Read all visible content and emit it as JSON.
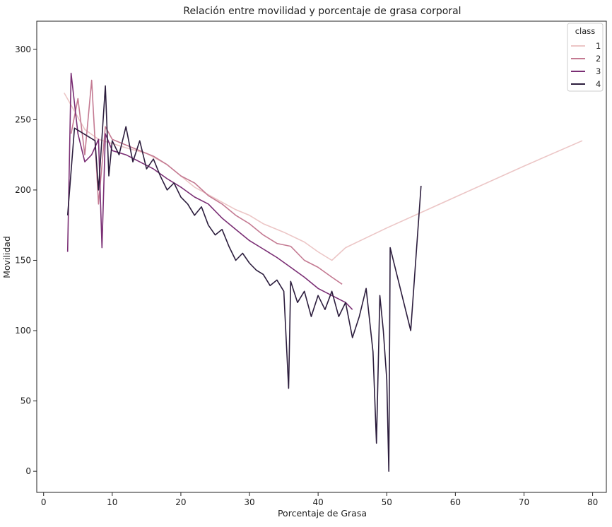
{
  "chart_data": {
    "type": "line",
    "title": "Relación entre movilidad y porcentaje de grasa corporal",
    "xlabel": "Porcentaje de Grasa",
    "ylabel": "Movilidad",
    "xlim": [
      -1,
      82
    ],
    "ylim": [
      -15,
      320
    ],
    "xticks": [
      "0",
      "10",
      "20",
      "30",
      "40",
      "50",
      "60",
      "70",
      "80"
    ],
    "yticks": [
      "0",
      "50",
      "100",
      "150",
      "200",
      "250",
      "300"
    ],
    "grid": false,
    "legend": {
      "title": "class",
      "placement": "top-right"
    },
    "series": [
      {
        "name": "1",
        "color": "#ecc6c6",
        "x": [
          3,
          6,
          8,
          10,
          12,
          15,
          18,
          20,
          22,
          25,
          28,
          30,
          32,
          35,
          38,
          40,
          42,
          44,
          50,
          60,
          70,
          78.5
        ],
        "y": [
          269,
          243,
          236,
          233,
          230,
          226,
          218,
          210,
          202,
          194,
          186,
          182,
          176,
          170,
          163,
          156,
          150,
          159,
          173,
          195,
          217,
          235
        ]
      },
      {
        "name": "2",
        "color": "#c47a92",
        "x": [
          4,
          5,
          6,
          7,
          8,
          9,
          10,
          12,
          14,
          16,
          18,
          20,
          22,
          24,
          26,
          28,
          30,
          32,
          34,
          36,
          38,
          40,
          42,
          43.5
        ],
        "y": [
          240,
          265,
          225,
          278,
          190,
          245,
          236,
          232,
          228,
          224,
          218,
          210,
          205,
          196,
          190,
          182,
          176,
          168,
          162,
          160,
          150,
          145,
          138,
          133
        ]
      },
      {
        "name": "3",
        "color": "#7a2e74",
        "x": [
          3.5,
          4,
          5,
          6,
          7,
          8,
          8.5,
          9,
          10,
          12,
          14,
          16,
          18,
          20,
          22,
          24,
          26,
          28,
          30,
          32,
          34,
          36,
          38,
          40,
          42,
          44,
          45
        ],
        "y": [
          156,
          283,
          240,
          220,
          225,
          236,
          159,
          240,
          228,
          225,
          220,
          215,
          208,
          202,
          195,
          190,
          180,
          172,
          164,
          158,
          152,
          145,
          138,
          130,
          125,
          120,
          115
        ]
      },
      {
        "name": "4",
        "color": "#2c1d3d",
        "x": [
          3.5,
          4.5,
          7.5,
          8,
          9,
          9.5,
          10,
          11,
          12,
          13,
          14,
          15,
          16,
          17,
          18,
          19,
          20,
          21,
          22,
          23,
          24,
          25,
          26,
          27,
          28,
          29,
          30,
          31,
          32,
          33,
          34,
          35,
          35.7,
          36,
          37,
          38,
          39,
          40,
          41,
          42,
          43,
          44,
          45,
          46,
          47,
          48,
          48.5,
          49,
          49.5,
          50,
          50.3,
          50.5,
          53.5,
          55
        ],
        "y": [
          182,
          244,
          235,
          200,
          274,
          210,
          235,
          225,
          245,
          220,
          235,
          215,
          222,
          210,
          200,
          205,
          195,
          190,
          182,
          188,
          175,
          168,
          172,
          160,
          150,
          155,
          148,
          143,
          140,
          132,
          136,
          128,
          59,
          135,
          120,
          128,
          110,
          125,
          115,
          128,
          110,
          120,
          95,
          110,
          130,
          85,
          20,
          125,
          100,
          65,
          0,
          159,
          100,
          203
        ]
      }
    ]
  }
}
